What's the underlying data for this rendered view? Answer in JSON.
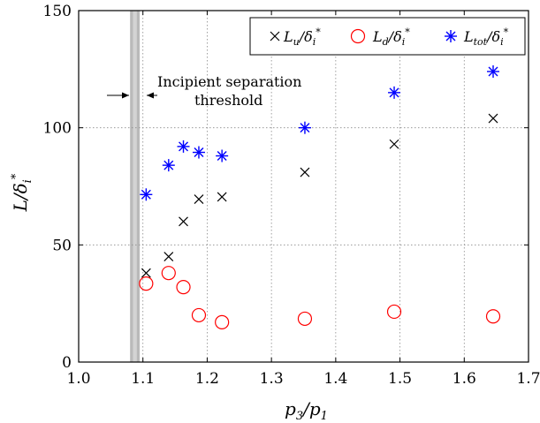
{
  "chart_data": {
    "type": "scatter",
    "xlabel": "p3/p1",
    "ylabel": "L/δi*",
    "xlim": [
      1.0,
      1.7
    ],
    "ylim": [
      0,
      150
    ],
    "xticks": [
      1.0,
      1.1,
      1.2,
      1.3,
      1.4,
      1.5,
      1.6,
      1.7
    ],
    "yticks": [
      0,
      50,
      100,
      150
    ],
    "xtick_labels": [
      "1.0",
      "1.1",
      "1.2",
      "1.3",
      "1.4",
      "1.5",
      "1.6",
      "1.7"
    ],
    "ytick_labels": [
      "0",
      "50",
      "100",
      "150"
    ],
    "grid": true,
    "legend_position": "top-right",
    "threshold_band": {
      "x_from": 1.08,
      "x_to": 1.095
    },
    "annotation": {
      "line1": "Incipient separation",
      "line2": "threshold"
    },
    "series": [
      {
        "name": "Lu/δi*",
        "marker": "x",
        "color": "#000000",
        "points": [
          {
            "x": 1.105,
            "y": 38
          },
          {
            "x": 1.14,
            "y": 45
          },
          {
            "x": 1.163,
            "y": 60
          },
          {
            "x": 1.187,
            "y": 69.5
          },
          {
            "x": 1.223,
            "y": 70.5
          },
          {
            "x": 1.352,
            "y": 81
          },
          {
            "x": 1.491,
            "y": 93
          },
          {
            "x": 1.645,
            "y": 104
          }
        ]
      },
      {
        "name": "Ld/δi*",
        "marker": "circle",
        "color": "#ff0000",
        "points": [
          {
            "x": 1.105,
            "y": 33.5
          },
          {
            "x": 1.14,
            "y": 38
          },
          {
            "x": 1.163,
            "y": 32
          },
          {
            "x": 1.187,
            "y": 20
          },
          {
            "x": 1.223,
            "y": 17
          },
          {
            "x": 1.352,
            "y": 18.5
          },
          {
            "x": 1.491,
            "y": 21.5
          },
          {
            "x": 1.645,
            "y": 19.5
          }
        ]
      },
      {
        "name": "Ltot/δi*",
        "marker": "asterisk",
        "color": "#0000ff",
        "points": [
          {
            "x": 1.105,
            "y": 71.5
          },
          {
            "x": 1.14,
            "y": 84
          },
          {
            "x": 1.163,
            "y": 92
          },
          {
            "x": 1.187,
            "y": 89.5
          },
          {
            "x": 1.223,
            "y": 88
          },
          {
            "x": 1.352,
            "y": 100
          },
          {
            "x": 1.491,
            "y": 115
          },
          {
            "x": 1.645,
            "y": 124
          }
        ]
      }
    ]
  }
}
